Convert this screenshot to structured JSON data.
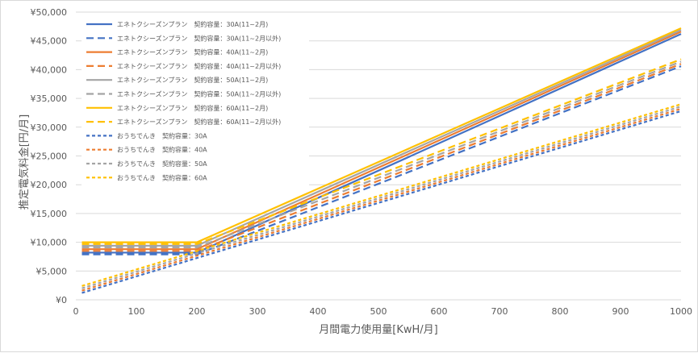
{
  "chart_data": {
    "type": "line",
    "title": "",
    "xlabel": "月間電力使用量[KwH/月]",
    "ylabel": "推定電気料金[円/月]",
    "xlim": [
      0,
      1000
    ],
    "ylim": [
      0,
      50000
    ],
    "x_ticks": [
      "0",
      "100",
      "200",
      "300",
      "400",
      "500",
      "600",
      "700",
      "800",
      "900",
      "1000"
    ],
    "y_ticks": [
      "¥0",
      "¥5,000",
      "¥10,000",
      "¥15,000",
      "¥20,000",
      "¥25,000",
      "¥30,000",
      "¥35,000",
      "¥40,000",
      "¥45,000",
      "¥50,000"
    ],
    "grid": "horizontal",
    "legend_position": "top-left",
    "series": [
      {
        "name": "エネトクシーズンプラン　契約容量：30A(11~2月)",
        "color": "#4472C4",
        "dash": "solid",
        "x": [
          10,
          200,
          1000
        ],
        "y": [
          8200,
          8200,
          46200
        ]
      },
      {
        "name": "エネトクシーズンプラン　契約容量：30A(11~2月以外)",
        "color": "#4472C4",
        "dash": "long",
        "x": [
          10,
          200,
          1000
        ],
        "y": [
          7900,
          7900,
          40600
        ]
      },
      {
        "name": "エネトクシーズンプラン　契約容量：40A(11~2月)",
        "color": "#ED7D31",
        "dash": "solid",
        "x": [
          10,
          200,
          1000
        ],
        "y": [
          8800,
          8800,
          46600
        ]
      },
      {
        "name": "エネトクシーズンプラン　契約容量：40A(11~2月以外)",
        "color": "#ED7D31",
        "dash": "long",
        "x": [
          10,
          200,
          1000
        ],
        "y": [
          8500,
          8500,
          41000
        ]
      },
      {
        "name": "エネトクシーズンプラン　契約容量：50A(11~2月)",
        "color": "#A5A5A5",
        "dash": "solid",
        "x": [
          10,
          200,
          1000
        ],
        "y": [
          9400,
          9400,
          46900
        ]
      },
      {
        "name": "エネトクシーズンプラン　契約容量：50A(11~2月以外)",
        "color": "#A5A5A5",
        "dash": "long",
        "x": [
          10,
          200,
          1000
        ],
        "y": [
          9100,
          9100,
          41400
        ]
      },
      {
        "name": "エネトクシーズンプラン　契約容量：60A(11~2月)",
        "color": "#FFC000",
        "dash": "solid",
        "x": [
          10,
          200,
          1000
        ],
        "y": [
          10000,
          10000,
          47200
        ]
      },
      {
        "name": "エネトクシーズンプラン　契約容量：60A(11~2月以外)",
        "color": "#FFC000",
        "dash": "long",
        "x": [
          10,
          200,
          1000
        ],
        "y": [
          9700,
          9700,
          41800
        ]
      },
      {
        "name": "おうちでんき　契約容量：30A",
        "color": "#4472C4",
        "dash": "short",
        "x": [
          10,
          1000
        ],
        "y": [
          1200,
          32800
        ]
      },
      {
        "name": "おうちでんき　契約容量：40A",
        "color": "#ED7D31",
        "dash": "short",
        "x": [
          10,
          1000
        ],
        "y": [
          1600,
          33200
        ]
      },
      {
        "name": "おうちでんき　契約容量：50A",
        "color": "#A5A5A5",
        "dash": "short",
        "x": [
          10,
          1000
        ],
        "y": [
          2000,
          33600
        ]
      },
      {
        "name": "おうちでんき　契約容量：60A",
        "color": "#FFC000",
        "dash": "short",
        "x": [
          10,
          1000
        ],
        "y": [
          2400,
          34000
        ]
      }
    ]
  }
}
